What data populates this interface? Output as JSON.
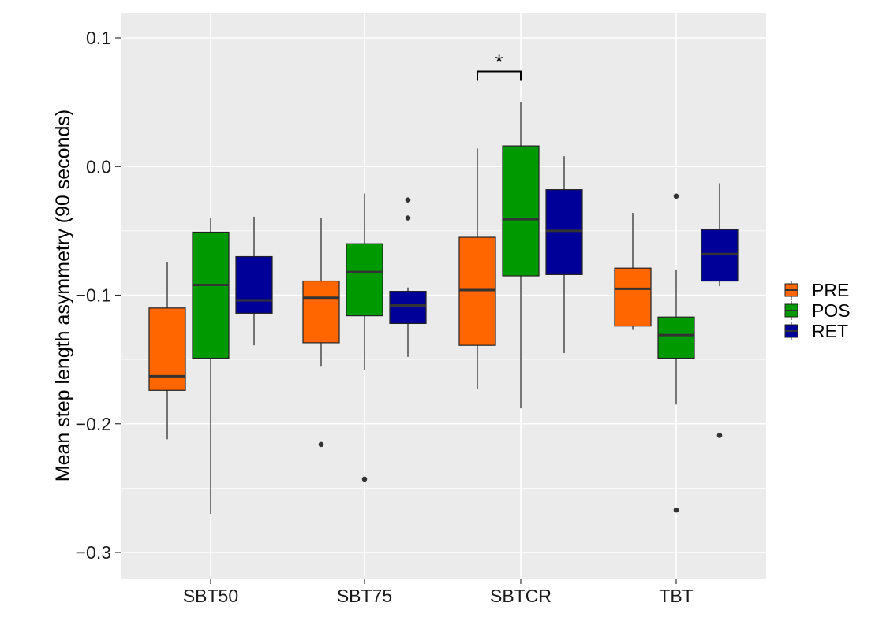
{
  "chart_data": {
    "type": "boxplot",
    "title": "",
    "xlabel": "",
    "ylabel": "Mean step length asymmetry (90 seconds)",
    "ylim": [
      -0.32,
      0.12
    ],
    "yticks": [
      0.1,
      0.0,
      -0.1,
      -0.2,
      -0.3
    ],
    "ytick_labels": [
      "0.1",
      "0.0",
      "−0.1",
      "−0.2",
      "−0.3"
    ],
    "grid": true,
    "legend_position": "right",
    "categories": [
      "SBT50",
      "SBT75",
      "SBTCR",
      "TBT"
    ],
    "series": [
      {
        "name": "PRE",
        "color": "#ff6600",
        "boxes": [
          {
            "lower_whisker": -0.212,
            "q1": -0.174,
            "median": -0.163,
            "q3": -0.11,
            "upper_whisker": -0.074,
            "outliers": []
          },
          {
            "lower_whisker": -0.155,
            "q1": -0.137,
            "median": -0.102,
            "q3": -0.089,
            "upper_whisker": -0.04,
            "outliers": [
              -0.216
            ]
          },
          {
            "lower_whisker": -0.173,
            "q1": -0.139,
            "median": -0.096,
            "q3": -0.055,
            "upper_whisker": 0.014,
            "outliers": []
          },
          {
            "lower_whisker": -0.127,
            "q1": -0.124,
            "median": -0.095,
            "q3": -0.079,
            "upper_whisker": -0.036,
            "outliers": []
          }
        ]
      },
      {
        "name": "POS",
        "color": "#009900",
        "boxes": [
          {
            "lower_whisker": -0.27,
            "q1": -0.149,
            "median": -0.092,
            "q3": -0.051,
            "upper_whisker": -0.04,
            "outliers": []
          },
          {
            "lower_whisker": -0.158,
            "q1": -0.116,
            "median": -0.082,
            "q3": -0.06,
            "upper_whisker": -0.021,
            "outliers": [
              -0.243
            ]
          },
          {
            "lower_whisker": -0.188,
            "q1": -0.085,
            "median": -0.041,
            "q3": 0.016,
            "upper_whisker": 0.05,
            "outliers": []
          },
          {
            "lower_whisker": -0.185,
            "q1": -0.149,
            "median": -0.131,
            "q3": -0.117,
            "upper_whisker": -0.08,
            "outliers": [
              -0.023,
              -0.267
            ]
          }
        ]
      },
      {
        "name": "RET",
        "color": "#000099",
        "boxes": [
          {
            "lower_whisker": -0.139,
            "q1": -0.114,
            "median": -0.104,
            "q3": -0.07,
            "upper_whisker": -0.039,
            "outliers": []
          },
          {
            "lower_whisker": -0.148,
            "q1": -0.122,
            "median": -0.108,
            "q3": -0.097,
            "upper_whisker": -0.094,
            "outliers": [
              -0.026,
              -0.04
            ]
          },
          {
            "lower_whisker": -0.145,
            "q1": -0.084,
            "median": -0.05,
            "q3": -0.018,
            "upper_whisker": 0.008,
            "outliers": []
          },
          {
            "lower_whisker": -0.093,
            "q1": -0.089,
            "median": -0.068,
            "q3": -0.049,
            "upper_whisker": -0.013,
            "outliers": [
              -0.209
            ]
          }
        ]
      }
    ],
    "annotations": [
      {
        "text": "*",
        "category": "SBTCR",
        "between": [
          "PRE",
          "POS"
        ],
        "y": 0.074
      }
    ]
  }
}
